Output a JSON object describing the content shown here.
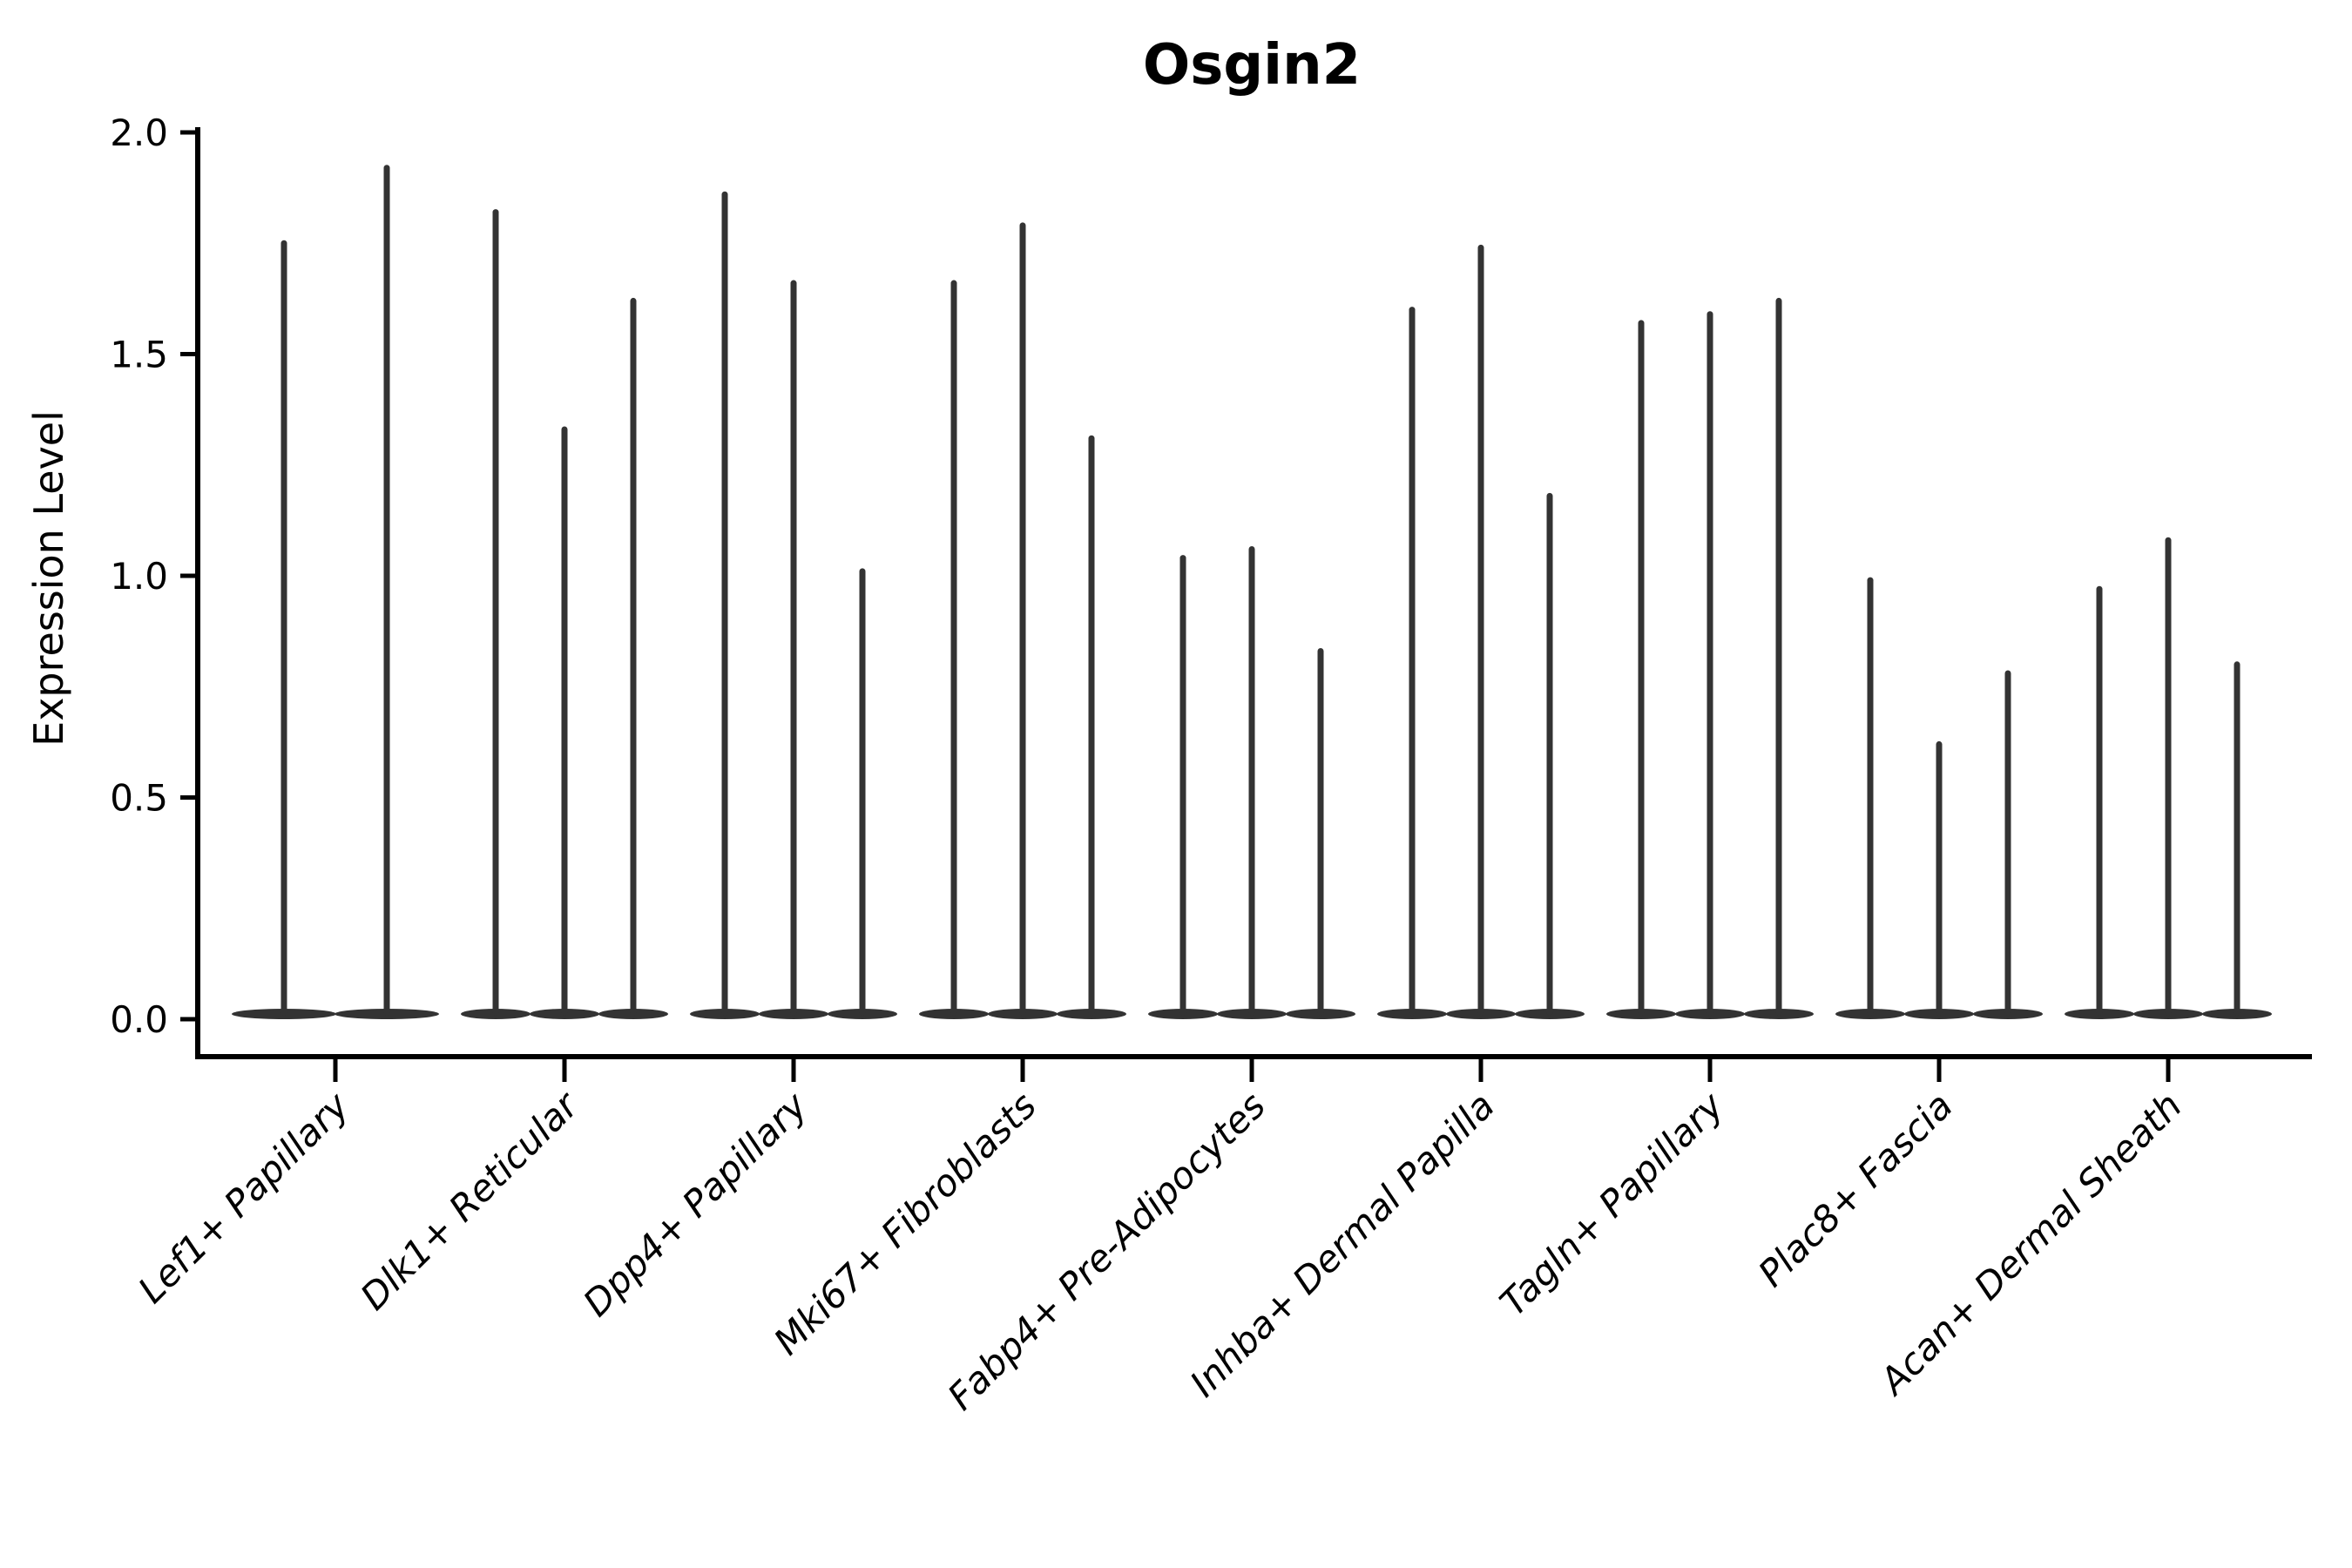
{
  "figure": {
    "background_color": "#ffffff"
  },
  "chart_data": {
    "type": "violin",
    "title": "Osgin2",
    "xlabel": "",
    "ylabel": "Expression Level",
    "ylim": [
      0.0,
      2.0
    ],
    "ytick_labels": [
      "0.0",
      "0.5",
      "1.0",
      "1.5",
      "2.0"
    ],
    "ytick_values": [
      0.0,
      0.5,
      1.0,
      1.5,
      2.0
    ],
    "grid": false,
    "legend": "none",
    "x_tick_rotation": 45,
    "violin_color": "#333333",
    "axis_color": "#000000",
    "shape_note": "each violin is collapsed flat at 0 expression with a thin spike rising to its maximum value",
    "categories": [
      "Lef1+ Papillary",
      "Dlk1+ Reticular",
      "Dpp4+ Papillary",
      "Mki67+ Fibroblasts",
      "Fabp4+ Pre-Adipocytes",
      "Inhba+ Dermal Papilla",
      "Tagln+ Papillary",
      "Plac8+ Fascia",
      "Acan+ Dermal Sheath"
    ],
    "groups": [
      {
        "label": "Lef1+ Papillary",
        "violin_maxima": [
          1.75,
          1.92
        ]
      },
      {
        "label": "Dlk1+ Reticular",
        "violin_maxima": [
          1.82,
          1.33,
          1.62
        ]
      },
      {
        "label": "Dpp4+ Papillary",
        "violin_maxima": [
          1.86,
          1.66,
          1.01
        ]
      },
      {
        "label": "Mki67+ Fibroblasts",
        "violin_maxima": [
          1.66,
          1.79,
          1.31
        ]
      },
      {
        "label": "Fabp4+ Pre-Adipocytes",
        "violin_maxima": [
          1.04,
          1.06,
          0.83
        ]
      },
      {
        "label": "Inhba+ Dermal Papilla",
        "violin_maxima": [
          1.6,
          1.74,
          1.18
        ]
      },
      {
        "label": "Tagln+ Papillary",
        "violin_maxima": [
          1.57,
          1.59,
          1.62
        ]
      },
      {
        "label": "Plac8+ Fascia",
        "violin_maxima": [
          0.99,
          0.62,
          0.78
        ]
      },
      {
        "label": "Acan+ Dermal Sheath",
        "violin_maxima": [
          0.97,
          1.08,
          0.8
        ]
      }
    ]
  }
}
